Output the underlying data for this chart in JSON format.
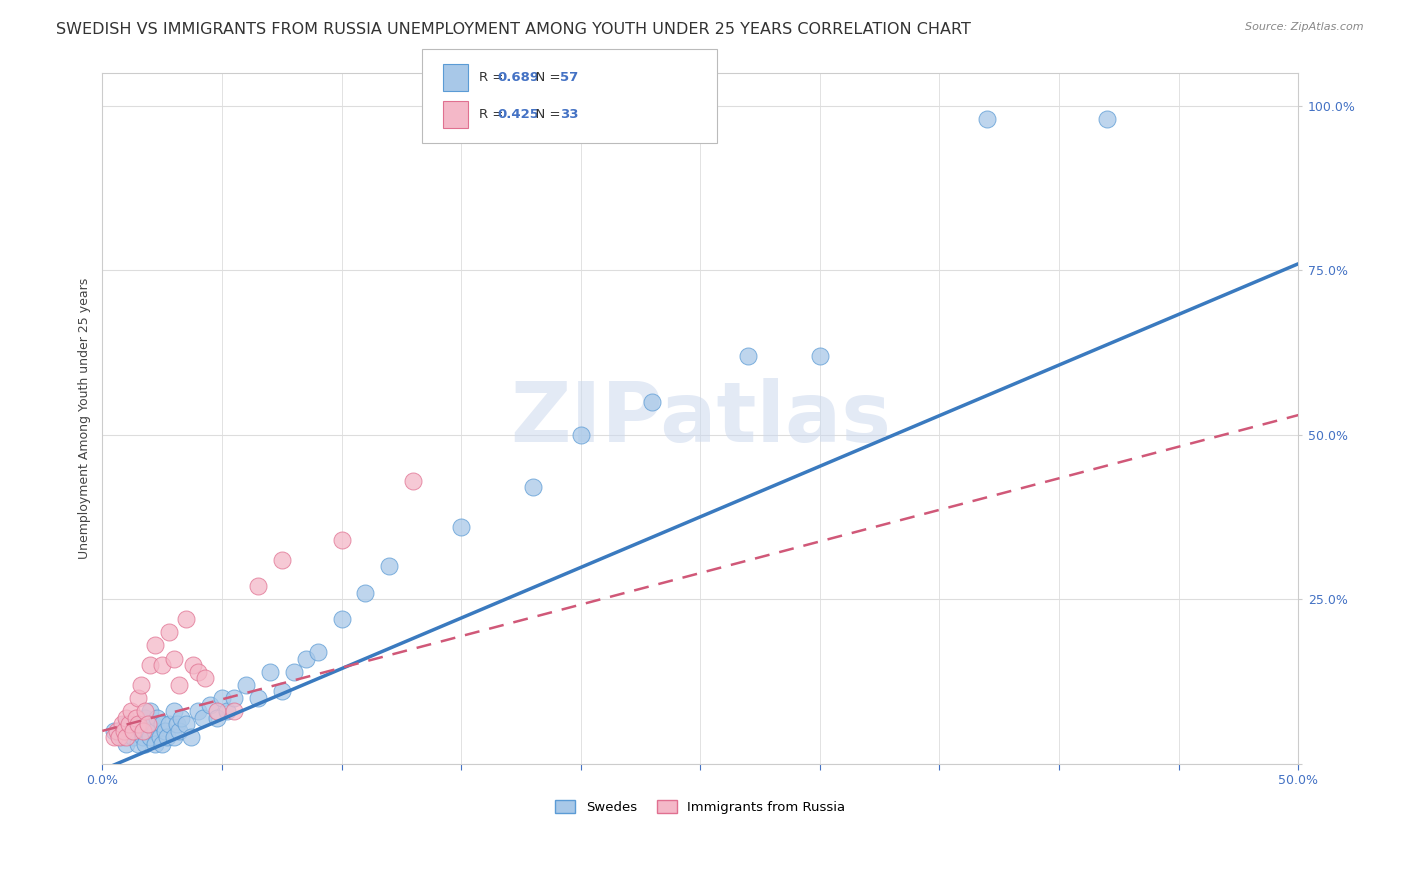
{
  "title": "SWEDISH VS IMMIGRANTS FROM RUSSIA UNEMPLOYMENT AMONG YOUTH UNDER 25 YEARS CORRELATION CHART",
  "source": "Source: ZipAtlas.com",
  "ylabel": "Unemployment Among Youth under 25 years",
  "xlim": [
    0.0,
    0.5
  ],
  "ylim": [
    0.0,
    1.05
  ],
  "ytick_positions": [
    0.0,
    0.25,
    0.5,
    0.75,
    1.0
  ],
  "ytick_labels": [
    "",
    "25.0%",
    "50.0%",
    "75.0%",
    "100.0%"
  ],
  "legend_label1": "Swedes",
  "legend_label2": "Immigrants from Russia",
  "blue_color": "#a8c8e8",
  "blue_edge_color": "#5b9bd5",
  "blue_line_color": "#3a7abf",
  "pink_color": "#f4b8c8",
  "pink_edge_color": "#e07090",
  "pink_line_color": "#d05878",
  "blue_dots_x": [
    0.005,
    0.008,
    0.01,
    0.01,
    0.012,
    0.013,
    0.015,
    0.015,
    0.016,
    0.017,
    0.018,
    0.018,
    0.019,
    0.02,
    0.02,
    0.021,
    0.022,
    0.022,
    0.023,
    0.024,
    0.025,
    0.025,
    0.026,
    0.027,
    0.028,
    0.03,
    0.03,
    0.031,
    0.032,
    0.033,
    0.035,
    0.037,
    0.04,
    0.042,
    0.045,
    0.048,
    0.05,
    0.052,
    0.055,
    0.06,
    0.065,
    0.07,
    0.075,
    0.08,
    0.085,
    0.09,
    0.1,
    0.11,
    0.12,
    0.15,
    0.18,
    0.2,
    0.23,
    0.27,
    0.3,
    0.37,
    0.42
  ],
  "blue_dots_y": [
    0.05,
    0.04,
    0.06,
    0.03,
    0.05,
    0.04,
    0.06,
    0.03,
    0.05,
    0.04,
    0.07,
    0.03,
    0.05,
    0.08,
    0.04,
    0.06,
    0.05,
    0.03,
    0.07,
    0.04,
    0.06,
    0.03,
    0.05,
    0.04,
    0.06,
    0.08,
    0.04,
    0.06,
    0.05,
    0.07,
    0.06,
    0.04,
    0.08,
    0.07,
    0.09,
    0.07,
    0.1,
    0.08,
    0.1,
    0.12,
    0.1,
    0.14,
    0.11,
    0.14,
    0.16,
    0.17,
    0.22,
    0.26,
    0.3,
    0.36,
    0.42,
    0.5,
    0.55,
    0.62,
    0.62,
    0.98,
    0.98
  ],
  "pink_dots_x": [
    0.005,
    0.006,
    0.007,
    0.008,
    0.009,
    0.01,
    0.01,
    0.011,
    0.012,
    0.013,
    0.014,
    0.015,
    0.015,
    0.016,
    0.017,
    0.018,
    0.019,
    0.02,
    0.022,
    0.025,
    0.028,
    0.03,
    0.032,
    0.035,
    0.038,
    0.04,
    0.043,
    0.048,
    0.055,
    0.065,
    0.075,
    0.1,
    0.13
  ],
  "pink_dots_y": [
    0.04,
    0.05,
    0.04,
    0.06,
    0.05,
    0.07,
    0.04,
    0.06,
    0.08,
    0.05,
    0.07,
    0.1,
    0.06,
    0.12,
    0.05,
    0.08,
    0.06,
    0.15,
    0.18,
    0.15,
    0.2,
    0.16,
    0.12,
    0.22,
    0.15,
    0.14,
    0.13,
    0.08,
    0.08,
    0.27,
    0.31,
    0.34,
    0.43
  ],
  "blue_line_x": [
    -0.02,
    0.5
  ],
  "blue_line_y": [
    -0.04,
    0.76
  ],
  "pink_line_x": [
    0.0,
    0.5
  ],
  "pink_line_y": [
    0.05,
    0.53
  ],
  "watermark_text": "ZIPatlas",
  "title_fontsize": 11.5,
  "tick_fontsize": 9,
  "ylabel_fontsize": 9
}
